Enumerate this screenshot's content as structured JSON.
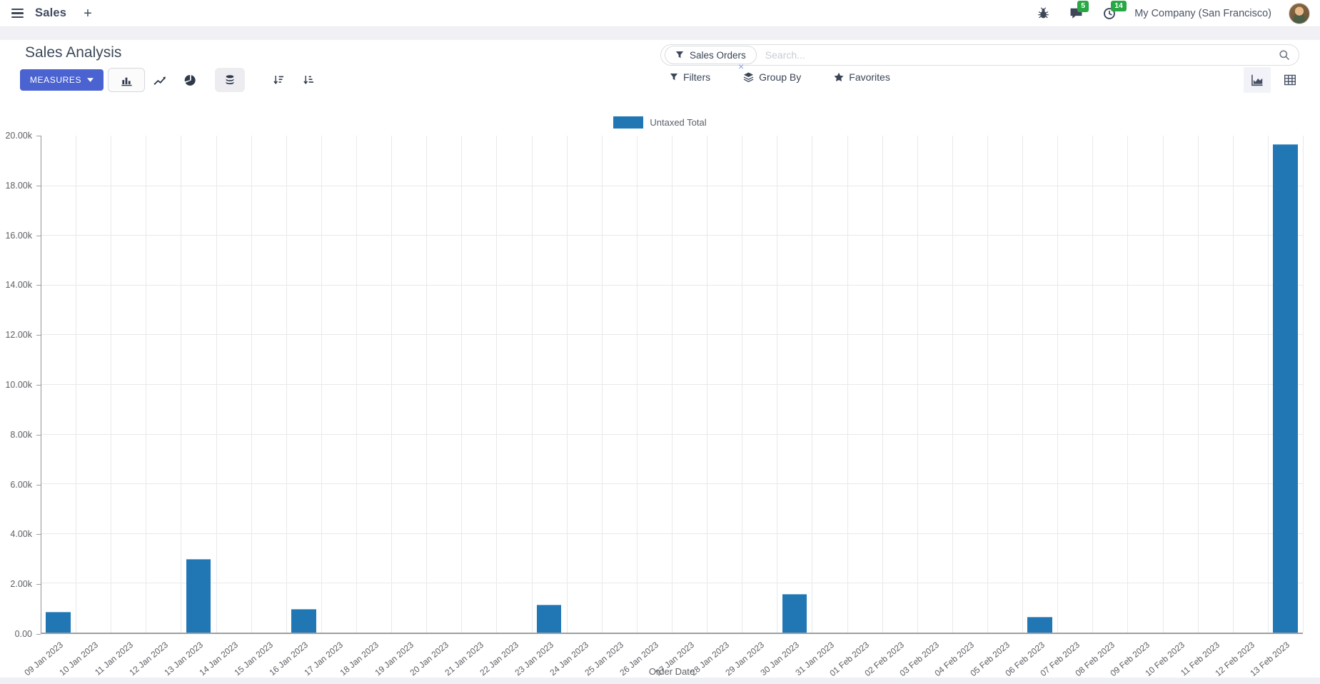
{
  "navbar": {
    "app_name": "Sales",
    "new_label": "+",
    "messages_count": "5",
    "activities_count": "14",
    "company": "My Company (San Francisco)"
  },
  "control_panel": {
    "title": "Sales Analysis",
    "measures_label": "MEASURES",
    "search": {
      "facet_label": "Sales Orders",
      "remove_label": "×",
      "placeholder": "Search..."
    },
    "buttons": {
      "filters": "Filters",
      "group_by": "Group By",
      "favorites": "Favorites"
    }
  },
  "icons": {
    "menu": "hamburger",
    "new": "plus",
    "debug": "bug",
    "messages": "chat-bubble",
    "activities": "clock",
    "facet": "funnel",
    "search": "magnifier",
    "filters": "funnel",
    "group_by": "layers",
    "favorites": "star",
    "measures_caret": "chevron-down",
    "chart_type_buttons": [
      "bar-chart",
      "line-chart",
      "pie-chart"
    ],
    "stacked_toggle": "database-stack",
    "sort_buttons": [
      "sort-descending",
      "sort-ascending"
    ],
    "view_switchers": [
      "area-chart",
      "pivot-grid"
    ]
  },
  "colors": {
    "accent": "#4a63d0",
    "bar": "#2077b4",
    "badge": "#28a745",
    "facet_remove": "#8aa0e8"
  },
  "chart_data": {
    "type": "bar",
    "title": "",
    "xlabel": "Order Date",
    "ylabel": "",
    "legend_position": "top",
    "grid": true,
    "ylim": [
      0,
      20000
    ],
    "y_tick_labels": [
      "0.00",
      "2.00k",
      "4.00k",
      "6.00k",
      "8.00k",
      "10.00k",
      "12.00k",
      "14.00k",
      "16.00k",
      "18.00k",
      "20.00k"
    ],
    "bar_color": "#2077b4",
    "categories": [
      "09 Jan 2023",
      "10 Jan 2023",
      "11 Jan 2023",
      "12 Jan 2023",
      "13 Jan 2023",
      "14 Jan 2023",
      "15 Jan 2023",
      "16 Jan 2023",
      "17 Jan 2023",
      "18 Jan 2023",
      "19 Jan 2023",
      "20 Jan 2023",
      "21 Jan 2023",
      "22 Jan 2023",
      "23 Jan 2023",
      "24 Jan 2023",
      "25 Jan 2023",
      "26 Jan 2023",
      "27 Jan 2023",
      "28 Jan 2023",
      "29 Jan 2023",
      "30 Jan 2023",
      "31 Jan 2023",
      "01 Feb 2023",
      "02 Feb 2023",
      "03 Feb 2023",
      "04 Feb 2023",
      "05 Feb 2023",
      "06 Feb 2023",
      "07 Feb 2023",
      "08 Feb 2023",
      "09 Feb 2023",
      "10 Feb 2023",
      "11 Feb 2023",
      "12 Feb 2023",
      "13 Feb 2023"
    ],
    "series": [
      {
        "name": "Untaxed Total",
        "values": [
          830,
          0,
          0,
          0,
          2950,
          0,
          0,
          950,
          0,
          0,
          0,
          0,
          0,
          0,
          1120,
          0,
          0,
          0,
          0,
          0,
          0,
          1550,
          0,
          0,
          0,
          0,
          0,
          0,
          630,
          0,
          0,
          0,
          0,
          0,
          0,
          19650
        ]
      }
    ]
  }
}
